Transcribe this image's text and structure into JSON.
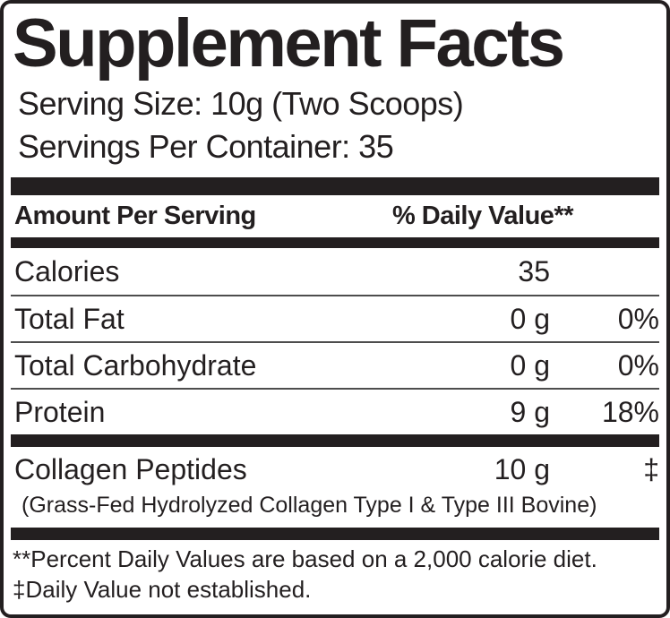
{
  "label": {
    "title": "Supplement Facts",
    "serving_size": "Serving Size: 10g (Two Scoops)",
    "servings_per_container": "Servings Per Container: 35",
    "header": {
      "amount_per_serving": "Amount Per Serving",
      "daily_value": "% Daily Value**"
    },
    "rows": [
      {
        "name": "Calories",
        "amount": "35",
        "dv": ""
      },
      {
        "name": "Total Fat",
        "amount": "0 g",
        "dv": "0%"
      },
      {
        "name": "Total Carbohydrate",
        "amount": "0 g",
        "dv": "0%"
      },
      {
        "name": "Protein",
        "amount": "9 g",
        "dv": "18%"
      }
    ],
    "supplement_rows": [
      {
        "name": "Collagen Peptides",
        "amount": "10 g",
        "dv": "‡",
        "detail": "(Grass-Fed Hydrolyzed Collagen Type I & Type III Bovine)"
      }
    ],
    "footnotes": [
      "**Percent Daily Values are based on a 2,000 calorie diet.",
      "‡Daily Value not established."
    ],
    "colors": {
      "ink": "#231f20",
      "background": "#ffffff"
    }
  }
}
